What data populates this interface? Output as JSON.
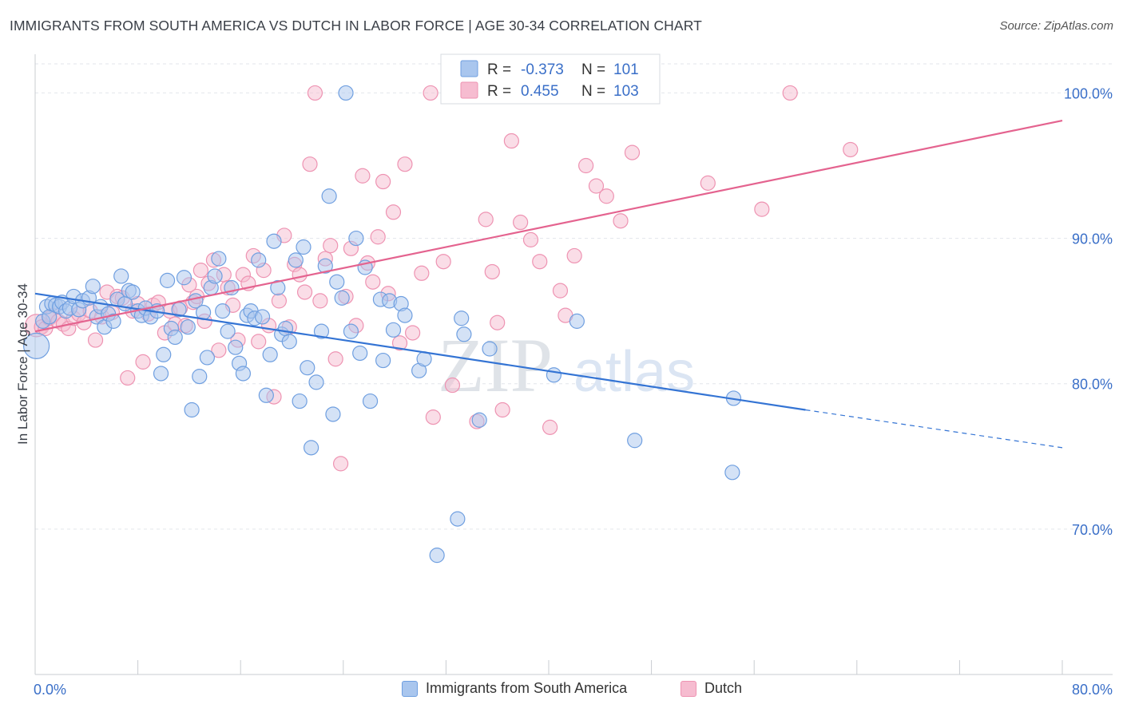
{
  "title": "IMMIGRANTS FROM SOUTH AMERICA VS DUTCH IN LABOR FORCE | AGE 30-34 CORRELATION CHART",
  "source": "Source: ZipAtlas.com",
  "watermark": {
    "zip": "ZIP",
    "atlas": "atlas"
  },
  "colors": {
    "blue_fill": "#a9c6ee",
    "blue_stroke": "#6f9fe0",
    "blue_line": "#3474d4",
    "pink_fill": "#f6bcd0",
    "pink_stroke": "#ee93b2",
    "pink_line": "#e4638f",
    "axis_label": "#3a6fc8",
    "grid": "#e3e6eb"
  },
  "chart_data": {
    "type": "scatter",
    "xlabel": "",
    "ylabel": "In Labor Force | Age 30-34",
    "xlim": [
      0,
      80
    ],
    "ylim": [
      60,
      102
    ],
    "x_tick_labels": [
      "0.0%",
      "80.0%"
    ],
    "y_ticks": [
      70,
      80,
      90,
      100
    ],
    "y_tick_labels": [
      "70.0%",
      "80.0%",
      "90.0%",
      "100.0%"
    ],
    "grid": true,
    "legend_position": "top-center",
    "stats": [
      {
        "r_label": "R =",
        "r": "-0.373",
        "n_label": "N =",
        "n": "101"
      },
      {
        "r_label": "R =",
        "r": "0.455",
        "n_label": "N =",
        "n": "103"
      }
    ],
    "series": [
      {
        "name": "Immigrants from South America",
        "trend": {
          "x0": 0,
          "y0": 86.2,
          "x1": 60,
          "y1": 78.2,
          "dash_to_x": 80,
          "dash_to_y": 75.6
        },
        "points": [
          [
            0.1,
            82.6
          ],
          [
            0.6,
            84.3
          ],
          [
            0.9,
            85.3
          ],
          [
            1.1,
            84.6
          ],
          [
            1.3,
            85.5
          ],
          [
            1.6,
            85.4
          ],
          [
            1.9,
            85.3
          ],
          [
            2.1,
            85.6
          ],
          [
            2.4,
            85.0
          ],
          [
            2.7,
            85.2
          ],
          [
            3.0,
            86.0
          ],
          [
            3.4,
            85.1
          ],
          [
            3.7,
            85.7
          ],
          [
            4.2,
            85.9
          ],
          [
            4.5,
            86.7
          ],
          [
            4.8,
            84.6
          ],
          [
            5.1,
            85.3
          ],
          [
            5.4,
            83.9
          ],
          [
            5.7,
            84.8
          ],
          [
            6.1,
            84.3
          ],
          [
            6.4,
            85.8
          ],
          [
            6.7,
            87.4
          ],
          [
            7.0,
            85.5
          ],
          [
            7.3,
            86.4
          ],
          [
            7.6,
            86.3
          ],
          [
            8.0,
            85.0
          ],
          [
            8.3,
            84.7
          ],
          [
            8.6,
            85.2
          ],
          [
            9.0,
            84.6
          ],
          [
            9.5,
            85.0
          ],
          [
            9.8,
            80.7
          ],
          [
            10.0,
            82.0
          ],
          [
            10.3,
            87.1
          ],
          [
            10.6,
            83.8
          ],
          [
            10.9,
            83.2
          ],
          [
            11.2,
            85.1
          ],
          [
            11.6,
            87.3
          ],
          [
            11.9,
            83.9
          ],
          [
            12.2,
            78.2
          ],
          [
            12.5,
            85.7
          ],
          [
            12.8,
            80.5
          ],
          [
            13.1,
            84.9
          ],
          [
            13.4,
            81.8
          ],
          [
            13.7,
            86.6
          ],
          [
            14.0,
            87.4
          ],
          [
            14.3,
            88.6
          ],
          [
            14.6,
            85.0
          ],
          [
            15.0,
            83.6
          ],
          [
            15.3,
            86.6
          ],
          [
            15.6,
            82.5
          ],
          [
            15.9,
            81.4
          ],
          [
            16.2,
            80.7
          ],
          [
            16.5,
            84.7
          ],
          [
            16.8,
            85.0
          ],
          [
            17.1,
            84.5
          ],
          [
            17.4,
            88.5
          ],
          [
            17.7,
            84.6
          ],
          [
            18.0,
            79.2
          ],
          [
            18.3,
            82.0
          ],
          [
            18.6,
            89.8
          ],
          [
            18.9,
            86.6
          ],
          [
            19.2,
            83.4
          ],
          [
            19.5,
            83.8
          ],
          [
            19.8,
            82.9
          ],
          [
            20.3,
            88.5
          ],
          [
            20.6,
            78.8
          ],
          [
            20.9,
            89.4
          ],
          [
            21.2,
            81.1
          ],
          [
            21.5,
            75.6
          ],
          [
            21.9,
            80.1
          ],
          [
            22.3,
            83.6
          ],
          [
            22.6,
            88.1
          ],
          [
            22.9,
            92.9
          ],
          [
            23.2,
            77.9
          ],
          [
            23.5,
            87.0
          ],
          [
            23.9,
            85.9
          ],
          [
            24.2,
            100.0
          ],
          [
            24.6,
            83.6
          ],
          [
            25.0,
            90.0
          ],
          [
            25.3,
            82.1
          ],
          [
            25.7,
            88.0
          ],
          [
            26.1,
            78.8
          ],
          [
            26.9,
            85.8
          ],
          [
            27.1,
            81.6
          ],
          [
            27.6,
            85.7
          ],
          [
            27.9,
            83.7
          ],
          [
            28.5,
            85.5
          ],
          [
            28.8,
            84.7
          ],
          [
            29.9,
            80.9
          ],
          [
            30.3,
            81.7
          ],
          [
            31.3,
            68.2
          ],
          [
            32.8,
            100.0
          ],
          [
            32.9,
            70.7
          ],
          [
            33.2,
            84.5
          ],
          [
            33.4,
            83.4
          ],
          [
            34.6,
            77.5
          ],
          [
            35.4,
            82.4
          ],
          [
            40.4,
            80.6
          ],
          [
            42.2,
            84.3
          ],
          [
            46.7,
            76.1
          ],
          [
            54.3,
            73.9
          ],
          [
            54.4,
            79.0
          ]
        ]
      },
      {
        "name": "Dutch",
        "trend": {
          "x0": 0,
          "y0": 83.6,
          "x1": 80,
          "y1": 98.1
        },
        "points": [
          [
            0.1,
            84.0
          ],
          [
            0.5,
            83.9
          ],
          [
            0.8,
            83.8
          ],
          [
            1.1,
            84.5
          ],
          [
            1.4,
            84.7
          ],
          [
            1.8,
            84.3
          ],
          [
            2.2,
            84.1
          ],
          [
            2.6,
            83.8
          ],
          [
            3.0,
            84.5
          ],
          [
            3.4,
            84.8
          ],
          [
            3.8,
            84.2
          ],
          [
            4.3,
            85.0
          ],
          [
            4.7,
            83.0
          ],
          [
            5.2,
            84.6
          ],
          [
            5.6,
            86.3
          ],
          [
            6.0,
            84.9
          ],
          [
            6.4,
            86.0
          ],
          [
            6.8,
            85.9
          ],
          [
            7.2,
            80.4
          ],
          [
            7.6,
            85.0
          ],
          [
            8.0,
            85.5
          ],
          [
            8.4,
            81.5
          ],
          [
            8.8,
            84.8
          ],
          [
            9.2,
            85.4
          ],
          [
            9.6,
            85.6
          ],
          [
            10.1,
            83.5
          ],
          [
            10.5,
            85.0
          ],
          [
            10.9,
            84.1
          ],
          [
            11.3,
            85.2
          ],
          [
            11.7,
            84.0
          ],
          [
            12.0,
            86.8
          ],
          [
            12.3,
            85.6
          ],
          [
            12.6,
            86.0
          ],
          [
            12.9,
            87.8
          ],
          [
            13.2,
            84.3
          ],
          [
            13.5,
            86.9
          ],
          [
            13.9,
            88.5
          ],
          [
            14.3,
            82.3
          ],
          [
            14.7,
            87.5
          ],
          [
            15.0,
            86.6
          ],
          [
            15.4,
            85.4
          ],
          [
            15.8,
            83.0
          ],
          [
            16.2,
            87.5
          ],
          [
            16.6,
            86.9
          ],
          [
            17.0,
            88.8
          ],
          [
            17.4,
            82.9
          ],
          [
            17.8,
            87.8
          ],
          [
            18.2,
            84.0
          ],
          [
            18.6,
            79.1
          ],
          [
            19.0,
            85.7
          ],
          [
            19.4,
            90.2
          ],
          [
            19.8,
            83.9
          ],
          [
            20.2,
            88.2
          ],
          [
            20.6,
            87.5
          ],
          [
            21.0,
            86.3
          ],
          [
            21.4,
            95.1
          ],
          [
            21.8,
            100.0
          ],
          [
            22.2,
            85.7
          ],
          [
            22.6,
            88.6
          ],
          [
            23.0,
            89.5
          ],
          [
            23.4,
            81.7
          ],
          [
            23.8,
            74.5
          ],
          [
            24.2,
            86.0
          ],
          [
            24.6,
            89.3
          ],
          [
            25.0,
            84.0
          ],
          [
            25.5,
            94.3
          ],
          [
            25.9,
            88.3
          ],
          [
            26.3,
            87.0
          ],
          [
            26.7,
            90.1
          ],
          [
            27.1,
            93.9
          ],
          [
            27.5,
            86.2
          ],
          [
            27.9,
            91.8
          ],
          [
            28.4,
            82.8
          ],
          [
            28.8,
            95.1
          ],
          [
            29.4,
            83.5
          ],
          [
            30.1,
            87.6
          ],
          [
            30.8,
            100.0
          ],
          [
            31.0,
            77.7
          ],
          [
            31.8,
            88.4
          ],
          [
            32.5,
            79.9
          ],
          [
            33.3,
            100.0
          ],
          [
            34.4,
            77.4
          ],
          [
            35.1,
            91.3
          ],
          [
            35.6,
            87.7
          ],
          [
            36.4,
            78.2
          ],
          [
            37.1,
            96.7
          ],
          [
            37.8,
            91.1
          ],
          [
            38.6,
            89.9
          ],
          [
            39.3,
            88.4
          ],
          [
            40.1,
            77.0
          ],
          [
            40.9,
            86.4
          ],
          [
            41.3,
            84.7
          ],
          [
            42.0,
            88.8
          ],
          [
            42.9,
            95.0
          ],
          [
            43.7,
            93.6
          ],
          [
            44.5,
            92.9
          ],
          [
            45.6,
            91.2
          ],
          [
            46.5,
            95.9
          ],
          [
            52.4,
            93.8
          ],
          [
            56.6,
            92.0
          ],
          [
            58.8,
            100.0
          ],
          [
            63.5,
            96.1
          ],
          [
            36.0,
            84.2
          ]
        ]
      }
    ]
  },
  "legend_bottom": [
    {
      "label": "Immigrants from South America",
      "series": 0
    },
    {
      "label": "Dutch",
      "series": 1
    }
  ]
}
